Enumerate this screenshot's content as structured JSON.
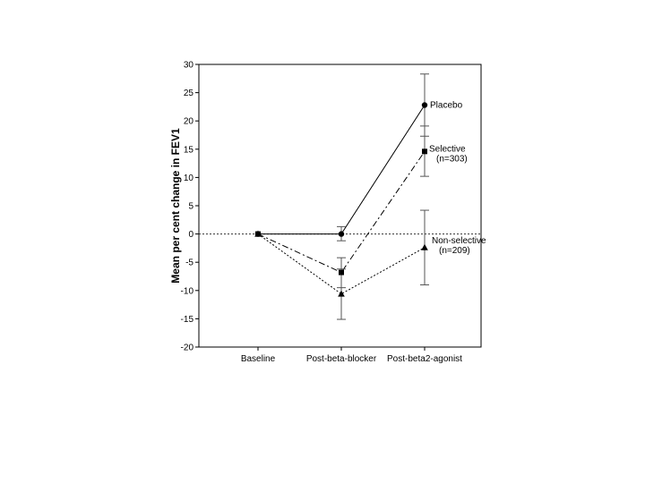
{
  "chart_data": {
    "type": "line",
    "title": "",
    "xlabel": "",
    "ylabel": "Mean per cent change in FEV1",
    "categories": [
      "Baseline",
      "Post-beta-blocker",
      "Post-beta2-agonist"
    ],
    "ylim": [
      -20,
      30
    ],
    "yticks": [
      30,
      25,
      20,
      15,
      10,
      5,
      0,
      -5,
      -10,
      -15,
      -20
    ],
    "reference_line": 0,
    "grid": false,
    "series": [
      {
        "name": "Placebo",
        "values": [
          0,
          0,
          22.8
        ],
        "error_low": [
          null,
          -1.2,
          17.3
        ],
        "error_high": [
          null,
          1.3,
          28.3
        ],
        "marker": "circle",
        "line_style": "solid",
        "label_lines": [
          "Placebo"
        ]
      },
      {
        "name": "Selective (n=303)",
        "values": [
          0,
          -6.8,
          14.6
        ],
        "error_low": [
          null,
          -9.5,
          10.2
        ],
        "error_high": [
          null,
          -4.2,
          19.1
        ],
        "marker": "square",
        "line_style": "dash-dot",
        "label_lines": [
          "Selective",
          "(n=303)"
        ]
      },
      {
        "name": "Non-selective (n=209)",
        "values": [
          0,
          -10.6,
          -2.4
        ],
        "error_low": [
          null,
          -15.1,
          -9.0
        ],
        "error_high": [
          null,
          -6.2,
          4.2
        ],
        "marker": "triangle",
        "line_style": "dotted",
        "label_lines": [
          "Non-selective",
          "(n=209)"
        ]
      }
    ]
  }
}
